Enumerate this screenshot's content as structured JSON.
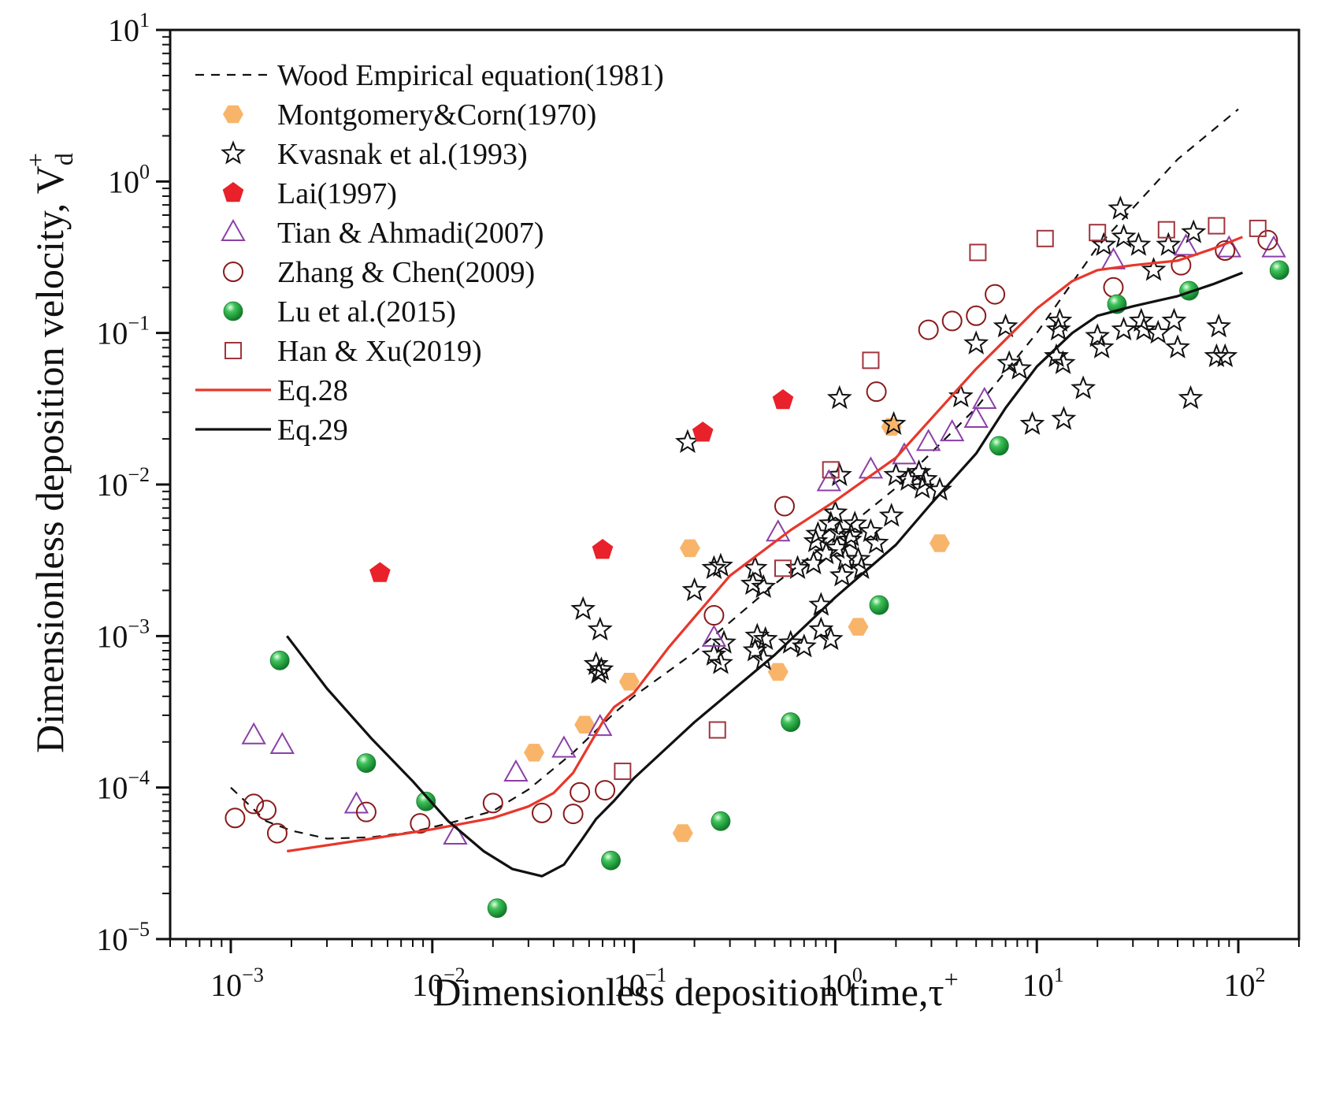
{
  "chart_data": {
    "type": "scatter",
    "x_scale": "log",
    "y_scale": "log",
    "xlim": [
      0.0005,
      200
    ],
    "ylim": [
      1e-05,
      10
    ],
    "xlabel": {
      "text": "Dimensionless deposition time,τ",
      "sup": "+"
    },
    "ylabel": {
      "text": "Dimensionless deposition velocity, V",
      "sub": "d",
      "sup": "+"
    },
    "x_ticks": [
      {
        "base": "10",
        "exp": "−3",
        "value": 0.001
      },
      {
        "base": "10",
        "exp": "−2",
        "value": 0.01
      },
      {
        "base": "10",
        "exp": "−1",
        "value": 0.1
      },
      {
        "base": "10",
        "exp": "0",
        "value": 1
      },
      {
        "base": "10",
        "exp": "1",
        "value": 10
      },
      {
        "base": "10",
        "exp": "2",
        "value": 100
      }
    ],
    "y_ticks": [
      {
        "base": "10",
        "exp": "−5",
        "value": 1e-05
      },
      {
        "base": "10",
        "exp": "−4",
        "value": 0.0001
      },
      {
        "base": "10",
        "exp": "−3",
        "value": 0.001
      },
      {
        "base": "10",
        "exp": "−2",
        "value": 0.01
      },
      {
        "base": "10",
        "exp": "−1",
        "value": 0.1
      },
      {
        "base": "10",
        "exp": "0",
        "value": 1
      },
      {
        "base": "10",
        "exp": "1",
        "value": 10
      }
    ],
    "legend_position": "top-left",
    "series": [
      {
        "name": "Wood Empirical equation(1981)",
        "kind": "line",
        "style": "dashed",
        "color": "#111111",
        "points": [
          [
            0.001,
            0.0001
          ],
          [
            0.0015,
            6e-05
          ],
          [
            0.002,
            5.2e-05
          ],
          [
            0.003,
            4.6e-05
          ],
          [
            0.005,
            4.7e-05
          ],
          [
            0.008,
            5.1e-05
          ],
          [
            0.012,
            5.8e-05
          ],
          [
            0.02,
            7e-05
          ],
          [
            0.03,
            9.7e-05
          ],
          [
            0.05,
            0.00017
          ],
          [
            0.08,
            0.00031
          ],
          [
            0.1,
            0.0004
          ],
          [
            0.2,
            0.00078
          ],
          [
            0.5,
            0.0022
          ],
          [
            1,
            0.0045
          ],
          [
            2,
            0.0095
          ],
          [
            5,
            0.032
          ],
          [
            10,
            0.1
          ],
          [
            20,
            0.37
          ],
          [
            50,
            1.4
          ],
          [
            100,
            3
          ]
        ]
      },
      {
        "name": "Montgomery&Corn(1970)",
        "kind": "scatter",
        "marker": "hexagon",
        "color": "#f8b56a",
        "points": [
          [
            0.032,
            0.00017
          ],
          [
            0.057,
            0.00026
          ],
          [
            0.095,
            0.0005
          ],
          [
            0.175,
            5e-05
          ],
          [
            0.19,
            0.0038
          ],
          [
            0.52,
            0.00058
          ],
          [
            1.3,
            0.00115
          ],
          [
            1.9,
            0.024
          ],
          [
            3.3,
            0.0041
          ]
        ]
      },
      {
        "name": "Kvasnak et al.(1993)",
        "kind": "scatter",
        "marker": "star-open",
        "color": "#111111",
        "points": [
          [
            0.056,
            0.0015
          ],
          [
            0.065,
            0.00065
          ],
          [
            0.067,
            0.00057
          ],
          [
            0.068,
            0.0011
          ],
          [
            0.069,
            0.0006
          ],
          [
            0.185,
            0.019
          ],
          [
            0.2,
            0.002
          ],
          [
            0.25,
            0.0028
          ],
          [
            0.27,
            0.0029
          ],
          [
            0.25,
            0.00075
          ],
          [
            0.28,
            0.0009
          ],
          [
            0.27,
            0.00066
          ],
          [
            0.4,
            0.0028
          ],
          [
            0.39,
            0.0022
          ],
          [
            0.41,
            0.001
          ],
          [
            0.4,
            0.0008
          ],
          [
            0.44,
            0.0021
          ],
          [
            0.45,
            0.00095
          ],
          [
            0.44,
            0.0007
          ],
          [
            0.6,
            0.0009
          ],
          [
            0.65,
            0.0028
          ],
          [
            0.7,
            0.00085
          ],
          [
            0.78,
            0.003
          ],
          [
            0.8,
            0.0042
          ],
          [
            0.82,
            0.0047
          ],
          [
            0.85,
            0.0016
          ],
          [
            0.85,
            0.0011
          ],
          [
            0.9,
            0.0035
          ],
          [
            0.95,
            0.0055
          ],
          [
            0.95,
            0.00095
          ],
          [
            1,
            0.0065
          ],
          [
            1.02,
            0.0038
          ],
          [
            1.05,
            0.037
          ],
          [
            1.05,
            0.0115
          ],
          [
            1.05,
            0.0048
          ],
          [
            1.08,
            0.0025
          ],
          [
            1.12,
            0.0032
          ],
          [
            1.18,
            0.0043
          ],
          [
            1.2,
            0.0046
          ],
          [
            1.25,
            0.0055
          ],
          [
            1.3,
            0.0032
          ],
          [
            1.35,
            0.0028
          ],
          [
            1.5,
            0.0049
          ],
          [
            1.6,
            0.0041
          ],
          [
            1.9,
            0.0062
          ],
          [
            1.95,
            0.025
          ],
          [
            2,
            0.0115
          ],
          [
            2.3,
            0.0107
          ],
          [
            2.6,
            0.012
          ],
          [
            2.7,
            0.0095
          ],
          [
            2.8,
            0.0108
          ],
          [
            3.3,
            0.0092
          ],
          [
            4.2,
            0.038
          ],
          [
            5,
            0.085
          ],
          [
            7,
            0.11
          ],
          [
            7.3,
            0.063
          ],
          [
            8.2,
            0.058
          ],
          [
            9.5,
            0.025
          ],
          [
            12.5,
            0.07
          ],
          [
            12.8,
            0.105
          ],
          [
            13,
            0.12
          ],
          [
            13.5,
            0.063
          ],
          [
            13.6,
            0.027
          ],
          [
            17,
            0.043
          ],
          [
            20,
            0.095
          ],
          [
            21,
            0.08
          ],
          [
            21.5,
            0.38
          ],
          [
            26,
            0.66
          ],
          [
            27,
            0.43
          ],
          [
            27,
            0.105
          ],
          [
            32,
            0.38
          ],
          [
            33,
            0.12
          ],
          [
            34,
            0.105
          ],
          [
            38,
            0.26
          ],
          [
            40,
            0.1
          ],
          [
            45,
            0.38
          ],
          [
            48,
            0.12
          ],
          [
            50,
            0.08
          ],
          [
            58,
            0.037
          ],
          [
            60,
            0.46
          ],
          [
            78,
            0.07
          ],
          [
            80,
            0.11
          ],
          [
            86,
            0.07
          ]
        ]
      },
      {
        "name": "Lai(1997)",
        "kind": "scatter",
        "marker": "pentagon",
        "color": "#e8212b",
        "points": [
          [
            0.0055,
            0.0026
          ],
          [
            0.07,
            0.0037
          ],
          [
            0.22,
            0.022
          ],
          [
            0.55,
            0.036
          ]
        ]
      },
      {
        "name": "Tian & Ahmadi(2007)",
        "kind": "scatter",
        "marker": "triangle-open",
        "color": "#8b3fa6",
        "points": [
          [
            0.0013,
            0.00022
          ],
          [
            0.0018,
            0.00019
          ],
          [
            0.0042,
            7.7e-05
          ],
          [
            0.013,
            4.8e-05
          ],
          [
            0.026,
            0.000125
          ],
          [
            0.045,
            0.00018
          ],
          [
            0.068,
            0.00025
          ],
          [
            0.25,
            0.00097
          ],
          [
            0.52,
            0.0048
          ],
          [
            0.93,
            0.0103
          ],
          [
            1.5,
            0.0125
          ],
          [
            2.2,
            0.0155
          ],
          [
            2.9,
            0.019
          ],
          [
            3.8,
            0.022
          ],
          [
            5,
            0.027
          ],
          [
            5.5,
            0.036
          ],
          [
            24,
            0.3
          ],
          [
            55,
            0.37
          ],
          [
            90,
            0.36
          ],
          [
            150,
            0.36
          ]
        ]
      },
      {
        "name": "Zhang & Chen(2009)",
        "kind": "scatter",
        "marker": "circle-open",
        "color": "#8a1a1a",
        "points": [
          [
            0.00105,
            6.3e-05
          ],
          [
            0.0013,
            7.8e-05
          ],
          [
            0.0015,
            7.1e-05
          ],
          [
            0.0017,
            5e-05
          ],
          [
            0.0047,
            6.9e-05
          ],
          [
            0.0087,
            5.8e-05
          ],
          [
            0.02,
            7.9e-05
          ],
          [
            0.035,
            6.8e-05
          ],
          [
            0.05,
            6.7e-05
          ],
          [
            0.054,
            9.3e-05
          ],
          [
            0.072,
            9.6e-05
          ],
          [
            0.25,
            0.00137
          ],
          [
            0.56,
            0.0072
          ],
          [
            1.6,
            0.041
          ],
          [
            2.9,
            0.105
          ],
          [
            3.8,
            0.12
          ],
          [
            5,
            0.13
          ],
          [
            6.2,
            0.18
          ],
          [
            24,
            0.2
          ],
          [
            52,
            0.28
          ],
          [
            86,
            0.35
          ],
          [
            140,
            0.41
          ]
        ]
      },
      {
        "name": "Lu et al.(2015)",
        "kind": "scatter",
        "marker": "ball",
        "color": "#27a745",
        "points": [
          [
            0.00175,
            0.00069
          ],
          [
            0.0047,
            0.000145
          ],
          [
            0.0093,
            8.1e-05
          ],
          [
            0.021,
            1.6e-05
          ],
          [
            0.077,
            3.3e-05
          ],
          [
            0.27,
            6e-05
          ],
          [
            0.6,
            0.00027
          ],
          [
            1.65,
            0.0016
          ],
          [
            6.5,
            0.018
          ],
          [
            25,
            0.155
          ],
          [
            57,
            0.19
          ],
          [
            160,
            0.26
          ]
        ]
      },
      {
        "name": "Han & Xu(2019)",
        "kind": "scatter",
        "marker": "square-open",
        "color": "#a0343e",
        "points": [
          [
            0.088,
            0.000128
          ],
          [
            0.26,
            0.00024
          ],
          [
            0.55,
            0.0028
          ],
          [
            0.95,
            0.0125
          ],
          [
            1.5,
            0.066
          ],
          [
            5.1,
            0.34
          ],
          [
            11,
            0.42
          ],
          [
            20,
            0.46
          ],
          [
            44,
            0.48
          ],
          [
            78,
            0.51
          ],
          [
            125,
            0.49
          ]
        ]
      },
      {
        "name": "Eq.28",
        "kind": "line",
        "style": "solid",
        "color": "#e8372b",
        "points": [
          [
            0.0019,
            3.8e-05
          ],
          [
            0.005,
            4.6e-05
          ],
          [
            0.01,
            5.3e-05
          ],
          [
            0.02,
            6.3e-05
          ],
          [
            0.03,
            7.5e-05
          ],
          [
            0.04,
            9.2e-05
          ],
          [
            0.05,
            0.000125
          ],
          [
            0.06,
            0.00019
          ],
          [
            0.07,
            0.00027
          ],
          [
            0.08,
            0.00034
          ],
          [
            0.1,
            0.00042
          ],
          [
            0.15,
            0.00085
          ],
          [
            0.3,
            0.0025
          ],
          [
            0.6,
            0.005
          ],
          [
            1,
            0.0078
          ],
          [
            2,
            0.015
          ],
          [
            5,
            0.058
          ],
          [
            10,
            0.145
          ],
          [
            15,
            0.22
          ],
          [
            20,
            0.26
          ],
          [
            30,
            0.28
          ],
          [
            50,
            0.3
          ],
          [
            75,
            0.36
          ],
          [
            105,
            0.43
          ]
        ]
      },
      {
        "name": "Eq.29",
        "kind": "line",
        "style": "solid",
        "color": "#111111",
        "points": [
          [
            0.0019,
            0.001
          ],
          [
            0.003,
            0.00045
          ],
          [
            0.005,
            0.00021
          ],
          [
            0.008,
            0.00011
          ],
          [
            0.012,
            6e-05
          ],
          [
            0.018,
            3.8e-05
          ],
          [
            0.025,
            2.9e-05
          ],
          [
            0.035,
            2.6e-05
          ],
          [
            0.045,
            3.1e-05
          ],
          [
            0.055,
            4.5e-05
          ],
          [
            0.065,
            6.2e-05
          ],
          [
            0.08,
            8.2e-05
          ],
          [
            0.1,
            0.000115
          ],
          [
            0.2,
            0.00027
          ],
          [
            0.5,
            0.00075
          ],
          [
            1,
            0.0018
          ],
          [
            2,
            0.004
          ],
          [
            3,
            0.0075
          ],
          [
            5,
            0.016
          ],
          [
            7,
            0.032
          ],
          [
            10,
            0.06
          ],
          [
            15,
            0.1
          ],
          [
            20,
            0.13
          ],
          [
            30,
            0.15
          ],
          [
            50,
            0.175
          ],
          [
            75,
            0.21
          ],
          [
            105,
            0.25
          ]
        ]
      }
    ]
  }
}
